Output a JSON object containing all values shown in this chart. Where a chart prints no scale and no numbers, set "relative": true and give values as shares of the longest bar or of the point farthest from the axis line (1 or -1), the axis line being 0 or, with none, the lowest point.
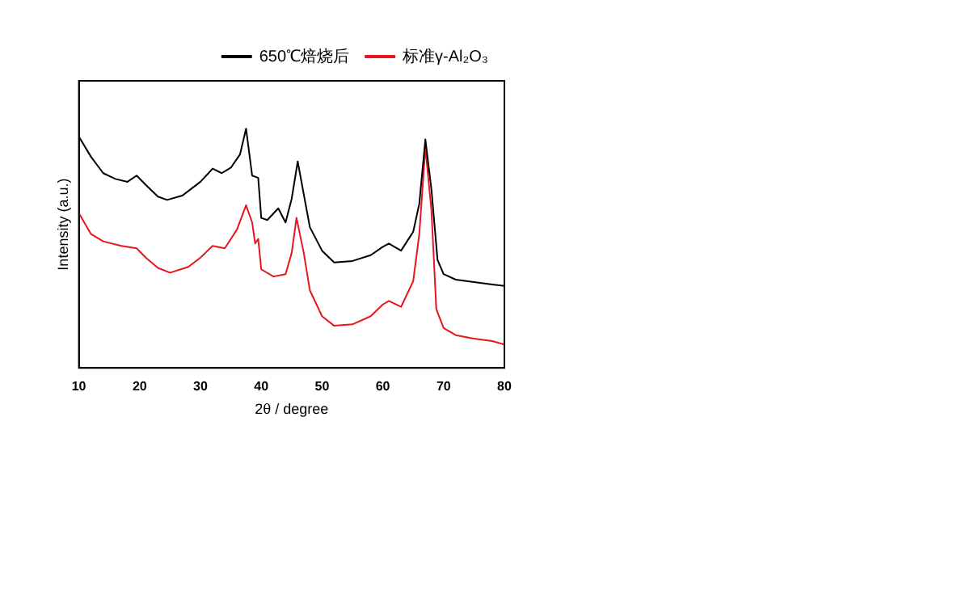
{
  "chart_data": {
    "type": "line",
    "relative": true,
    "xlabel": "2θ / degree",
    "ylabel": "Intensity (a.u.)",
    "xlim": [
      10,
      80
    ],
    "xticks": [
      10,
      20,
      30,
      40,
      50,
      60,
      70,
      80
    ],
    "legend": "top right",
    "grid": false,
    "marker": "none",
    "line_style": "solid",
    "series": [
      {
        "name": "650℃焙烧后",
        "color": "#000000",
        "x": [
          10,
          12,
          14,
          16,
          18,
          19.5,
          21,
          23,
          24.5,
          27,
          30,
          32,
          33.5,
          35,
          36.5,
          37.5,
          38.5,
          39.5,
          40,
          41,
          42.8,
          44,
          45,
          46,
          47,
          48,
          50,
          52,
          55,
          58,
          60,
          61,
          63,
          65,
          66,
          67,
          68,
          69,
          70,
          72,
          75,
          78,
          80
        ],
        "values": [
          0.967,
          0.882,
          0.814,
          0.79,
          0.778,
          0.804,
          0.765,
          0.716,
          0.702,
          0.72,
          0.778,
          0.833,
          0.814,
          0.837,
          0.892,
          1,
          0.804,
          0.794,
          0.627,
          0.618,
          0.667,
          0.608,
          0.706,
          0.863,
          0.725,
          0.588,
          0.49,
          0.441,
          0.447,
          0.471,
          0.506,
          0.52,
          0.49,
          0.569,
          0.686,
          0.955,
          0.745,
          0.451,
          0.392,
          0.369,
          0.359,
          0.349,
          0.343
        ]
      },
      {
        "name": "标准γ-Al₂O₃",
        "color": "#e8141e",
        "x": [
          10,
          12,
          14,
          17,
          19.5,
          21,
          23,
          25,
          28,
          30,
          32,
          34,
          36,
          37.5,
          38.5,
          39,
          39.5,
          40,
          42,
          44,
          45,
          45.8,
          47,
          48,
          50,
          52,
          55,
          58,
          60,
          61,
          63,
          65,
          66,
          67,
          68,
          68.8,
          70,
          72,
          75,
          78,
          80
        ],
        "values": [
          0.647,
          0.559,
          0.529,
          0.51,
          0.5,
          0.461,
          0.418,
          0.398,
          0.422,
          0.461,
          0.51,
          0.5,
          0.578,
          0.68,
          0.608,
          0.52,
          0.539,
          0.412,
          0.382,
          0.392,
          0.48,
          0.627,
          0.48,
          0.324,
          0.216,
          0.176,
          0.182,
          0.216,
          0.265,
          0.28,
          0.255,
          0.363,
          0.559,
          0.922,
          0.657,
          0.245,
          0.167,
          0.137,
          0.122,
          0.112,
          0.098
        ]
      }
    ]
  }
}
